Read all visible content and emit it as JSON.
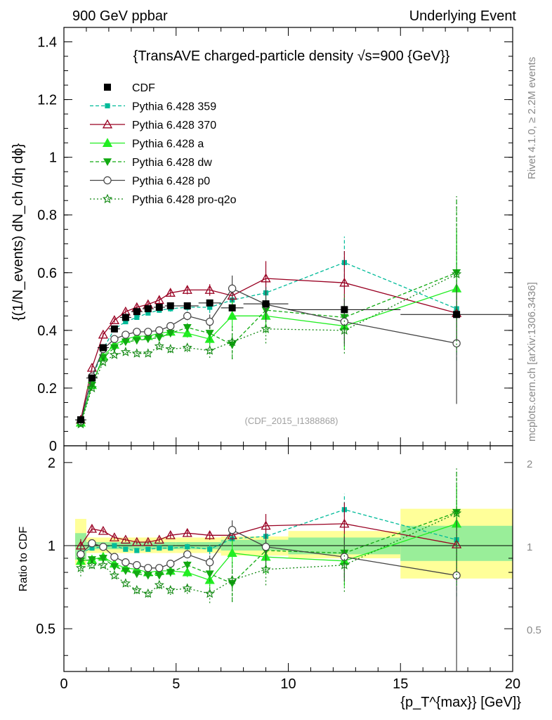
{
  "header": {
    "left": "900 GeV ppbar",
    "right": "Underlying Event"
  },
  "side_labels": {
    "rivet": "Rivet 4.1.0, ≥ 2.2M events",
    "mcplots": "mcplots.cern.ch [arXiv:1306.3436]"
  },
  "watermark": "(CDF_2015_I1388868)",
  "chart_data": [
    {
      "type": "line",
      "panel": "main",
      "title": "{TransAVE charged-particle density √s=900 {GeV}}",
      "ylabel": "{(1/N_events) dN_ch /dη dϕ}",
      "xlabel": "",
      "xlim": [
        0,
        20
      ],
      "ylim": [
        0,
        1.45
      ],
      "yticks": [
        "0",
        "0.2",
        "0.4",
        "0.6",
        "0.8",
        "1",
        "1.2",
        "1.4"
      ],
      "yticks_values": [
        0,
        0.2,
        0.4,
        0.6,
        0.8,
        1.0,
        1.2,
        1.4
      ],
      "data": {
        "name": "CDF",
        "x": [
          0.75,
          1.25,
          1.75,
          2.25,
          2.75,
          3.25,
          3.75,
          4.25,
          4.75,
          5.5,
          6.5,
          7.5,
          9.0,
          12.5,
          17.5
        ],
        "y": [
          0.09,
          0.235,
          0.34,
          0.405,
          0.445,
          0.465,
          0.475,
          0.48,
          0.485,
          0.485,
          0.495,
          0.478,
          0.492,
          0.472,
          0.455
        ],
        "xerr": [
          0.25,
          0.25,
          0.25,
          0.25,
          0.25,
          0.25,
          0.25,
          0.25,
          0.25,
          0.5,
          0.5,
          0.5,
          1.0,
          2.5,
          2.5
        ]
      },
      "series": [
        {
          "name": "Pythia 6.428 359",
          "color": "#00bb99",
          "dash": "5,3",
          "marker": "square-small",
          "x": [
            0.75,
            1.25,
            1.75,
            2.25,
            2.75,
            3.25,
            3.75,
            4.25,
            4.75,
            5.5,
            6.5,
            7.5,
            9.0,
            12.5,
            17.5
          ],
          "y": [
            0.085,
            0.23,
            0.335,
            0.405,
            0.43,
            0.445,
            0.46,
            0.47,
            0.475,
            0.48,
            0.48,
            0.505,
            0.53,
            0.635,
            0.475
          ],
          "yerr": [
            0.005,
            0.005,
            0.006,
            0.006,
            0.007,
            0.007,
            0.008,
            0.009,
            0.01,
            0.012,
            0.02,
            0.035,
            0.05,
            0.09,
            0.18
          ]
        },
        {
          "name": "Pythia 6.428 370",
          "color": "#990022",
          "dash": "",
          "marker": "triangle-open",
          "x": [
            0.75,
            1.25,
            1.75,
            2.25,
            2.75,
            3.25,
            3.75,
            4.25,
            4.75,
            5.5,
            6.5,
            7.5,
            9.0,
            12.5,
            17.5
          ],
          "y": [
            0.09,
            0.27,
            0.385,
            0.435,
            0.465,
            0.48,
            0.49,
            0.505,
            0.53,
            0.54,
            0.54,
            0.52,
            0.58,
            0.565,
            0.46
          ],
          "yerr": [
            0.005,
            0.006,
            0.007,
            0.008,
            0.008,
            0.009,
            0.009,
            0.01,
            0.012,
            0.015,
            0.02,
            0.035,
            0.06,
            0.11,
            0.12
          ]
        },
        {
          "name": "Pythia 6.428 a",
          "color": "#22ee22",
          "dash": "",
          "marker": "triangle-filled",
          "x": [
            0.75,
            1.25,
            1.75,
            2.25,
            2.75,
            3.25,
            3.75,
            4.25,
            4.75,
            5.5,
            6.5,
            7.5,
            9.0,
            12.5,
            17.5
          ],
          "y": [
            0.08,
            0.21,
            0.31,
            0.35,
            0.37,
            0.38,
            0.38,
            0.39,
            0.395,
            0.39,
            0.37,
            0.45,
            0.45,
            0.415,
            0.545
          ],
          "yerr": [
            0.005,
            0.006,
            0.007,
            0.008,
            0.009,
            0.01,
            0.01,
            0.011,
            0.013,
            0.015,
            0.025,
            0.05,
            0.06,
            0.08,
            0.2
          ]
        },
        {
          "name": "Pythia 6.428 dw",
          "color": "#11aa11",
          "dash": "5,3",
          "marker": "triangle-down",
          "x": [
            0.75,
            1.25,
            1.75,
            2.25,
            2.75,
            3.25,
            3.75,
            4.25,
            4.75,
            5.5,
            6.5,
            7.5,
            9.0,
            12.5,
            17.5
          ],
          "y": [
            0.08,
            0.21,
            0.305,
            0.34,
            0.36,
            0.365,
            0.37,
            0.375,
            0.39,
            0.41,
            0.39,
            0.35,
            0.47,
            0.445,
            0.6
          ],
          "yerr": [
            0.005,
            0.006,
            0.007,
            0.008,
            0.009,
            0.01,
            0.01,
            0.011,
            0.013,
            0.015,
            0.025,
            0.05,
            0.06,
            0.08,
            0.25
          ]
        },
        {
          "name": "Pythia 6.428 p0",
          "color": "#444444",
          "dash": "",
          "marker": "circle-open",
          "x": [
            0.75,
            1.25,
            1.75,
            2.25,
            2.75,
            3.25,
            3.75,
            4.25,
            4.75,
            5.5,
            6.5,
            7.5,
            9.0,
            12.5,
            17.5
          ],
          "y": [
            0.085,
            0.24,
            0.335,
            0.37,
            0.385,
            0.395,
            0.395,
            0.4,
            0.415,
            0.45,
            0.43,
            0.545,
            0.49,
            0.43,
            0.355
          ],
          "yerr": [
            0.005,
            0.006,
            0.007,
            0.008,
            0.009,
            0.01,
            0.01,
            0.011,
            0.013,
            0.015,
            0.025,
            0.045,
            0.06,
            0.08,
            0.21
          ]
        },
        {
          "name": "Pythia 6.428 pro-q2o",
          "color": "#118811",
          "dash": "2,3",
          "marker": "star-open",
          "x": [
            0.75,
            1.25,
            1.75,
            2.25,
            2.75,
            3.25,
            3.75,
            4.25,
            4.75,
            5.5,
            6.5,
            7.5,
            9.0,
            12.5,
            17.5
          ],
          "y": [
            0.075,
            0.2,
            0.29,
            0.315,
            0.325,
            0.32,
            0.32,
            0.345,
            0.335,
            0.34,
            0.33,
            0.36,
            0.405,
            0.4,
            0.595
          ],
          "yerr": [
            0.005,
            0.006,
            0.007,
            0.008,
            0.009,
            0.01,
            0.01,
            0.011,
            0.013,
            0.015,
            0.025,
            0.06,
            0.05,
            0.08,
            0.27
          ]
        }
      ]
    },
    {
      "type": "line",
      "panel": "ratio",
      "ylabel": "Ratio to CDF",
      "xlabel": "{p_T^{max}} [GeV]}",
      "xlim": [
        0,
        20
      ],
      "ylim": [
        0.35,
        2.3
      ],
      "yscale": "log",
      "xticks": [
        "0",
        "5",
        "10",
        "15",
        "20"
      ],
      "xticks_values": [
        0,
        5,
        10,
        15,
        20
      ],
      "yticks": [
        "0.5",
        "1",
        "2"
      ],
      "yticks_values": [
        0.5,
        1,
        2
      ],
      "bands": [
        {
          "x0": 0.5,
          "x1": 1.0,
          "stat": [
            0.89,
            1.11
          ],
          "total": [
            0.85,
            1.25
          ]
        },
        {
          "x0": 1.0,
          "x1": 5.0,
          "stat": [
            0.97,
            1.03
          ],
          "total": [
            0.94,
            1.07
          ]
        },
        {
          "x0": 5.0,
          "x1": 7.0,
          "stat": [
            0.97,
            1.03
          ],
          "total": [
            0.94,
            1.07
          ]
        },
        {
          "x0": 7.0,
          "x1": 10.0,
          "stat": [
            0.96,
            1.05
          ],
          "total": [
            0.92,
            1.08
          ]
        },
        {
          "x0": 10.0,
          "x1": 15.0,
          "stat": [
            0.93,
            1.07
          ],
          "total": [
            0.9,
            1.13
          ]
        },
        {
          "x0": 15.0,
          "x1": 20.0,
          "stat": [
            0.88,
            1.18
          ],
          "total": [
            0.76,
            1.36
          ]
        }
      ],
      "series": [
        {
          "name": "Pythia 6.428 359",
          "y": [
            0.94,
            0.98,
            0.99,
            1.0,
            0.97,
            0.96,
            0.97,
            0.98,
            0.98,
            0.99,
            0.97,
            1.06,
            1.08,
            1.35,
            1.05
          ]
        },
        {
          "name": "Pythia 6.428 370",
          "y": [
            1.0,
            1.15,
            1.13,
            1.07,
            1.05,
            1.03,
            1.03,
            1.05,
            1.09,
            1.11,
            1.09,
            1.09,
            1.18,
            1.2,
            1.01
          ]
        },
        {
          "name": "Pythia 6.428 a",
          "y": [
            0.88,
            0.89,
            0.91,
            0.86,
            0.83,
            0.82,
            0.8,
            0.81,
            0.81,
            0.8,
            0.75,
            0.94,
            0.91,
            0.88,
            1.2
          ]
        },
        {
          "name": "Pythia 6.428 dw",
          "y": [
            0.88,
            0.89,
            0.9,
            0.84,
            0.81,
            0.79,
            0.78,
            0.78,
            0.8,
            0.85,
            0.79,
            0.73,
            0.96,
            0.94,
            1.32
          ]
        },
        {
          "name": "Pythia 6.428 p0",
          "y": [
            0.93,
            1.02,
            0.99,
            0.91,
            0.87,
            0.85,
            0.83,
            0.83,
            0.86,
            0.93,
            0.87,
            1.14,
            0.99,
            0.91,
            0.78
          ]
        },
        {
          "name": "Pythia 6.428 pro-q2o",
          "y": [
            0.83,
            0.85,
            0.85,
            0.78,
            0.73,
            0.69,
            0.67,
            0.72,
            0.69,
            0.7,
            0.67,
            0.75,
            0.82,
            0.85,
            1.31
          ]
        }
      ]
    }
  ]
}
